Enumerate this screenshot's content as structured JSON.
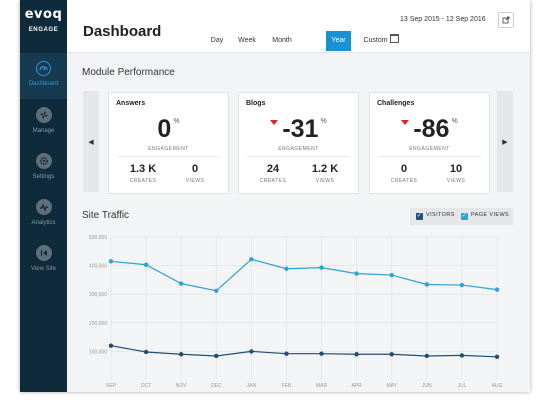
{
  "app": {
    "logo": "evoq",
    "logo_sub": "ENGAGE"
  },
  "sidebar": {
    "items": [
      {
        "label": "Dashboard",
        "icon": "dashboard-icon",
        "active": true
      },
      {
        "label": "Manage",
        "icon": "manage-icon",
        "active": false
      },
      {
        "label": "Settings",
        "icon": "settings-icon",
        "active": false
      },
      {
        "label": "Analytics",
        "icon": "analytics-icon",
        "active": false
      },
      {
        "label": "View Site",
        "icon": "view-site-icon",
        "active": false
      }
    ]
  },
  "header": {
    "title": "Dashboard",
    "date_range": "13 Sep 2015 - 12 Sep 2016",
    "ranges": [
      "Day",
      "Week",
      "Month",
      "Year",
      "Custom"
    ],
    "active_range": "Year"
  },
  "module_performance": {
    "title": "Module Performance",
    "cards": [
      {
        "title": "Answers",
        "value": "0",
        "trend": "none",
        "unit": "%",
        "label": "ENGAGEMENT",
        "stats": [
          {
            "value": "1.3 K",
            "label": "CREATES"
          },
          {
            "value": "0",
            "label": "VIEWS"
          }
        ]
      },
      {
        "title": "Blogs",
        "value": "-31",
        "trend": "down",
        "unit": "%",
        "label": "ENGAGEMENT",
        "stats": [
          {
            "value": "24",
            "label": "CREATES"
          },
          {
            "value": "1.2 K",
            "label": "VIEWS"
          }
        ]
      },
      {
        "title": "Challenges",
        "value": "-86",
        "trend": "down",
        "unit": "%",
        "label": "ENGAGEMENT",
        "stats": [
          {
            "value": "0",
            "label": "CREATES"
          },
          {
            "value": "10",
            "label": "VIEWS"
          }
        ]
      }
    ]
  },
  "site_traffic": {
    "title": "Site Traffic",
    "legend": [
      {
        "label": "VISITORS",
        "checked": true,
        "color": "#1e4e79"
      },
      {
        "label": "PAGE VIEWS",
        "checked": true,
        "color": "#2ea3d5"
      }
    ]
  },
  "colors": {
    "accent": "#1a92d2",
    "sidebar": "#0f2a3a",
    "trend_down": "#e02424"
  },
  "chart_data": {
    "type": "line",
    "categories": [
      "SEP",
      "OCT",
      "NOV",
      "DEC",
      "JAN",
      "FEB",
      "MAR",
      "APR",
      "MAY",
      "JUN",
      "JUL",
      "AUG"
    ],
    "yticks": [
      "500,000",
      "400,000",
      "300,000",
      "200,000",
      "100,000"
    ],
    "ylim": [
      0,
      500000
    ],
    "grid": true,
    "series": [
      {
        "name": "PAGE VIEWS",
        "color": "#2ea3d5",
        "values": [
          415000,
          403000,
          337000,
          312000,
          422000,
          389000,
          393000,
          372000,
          367000,
          334000,
          332000,
          316000
        ]
      },
      {
        "name": "VISITORS",
        "color": "#1e4e79",
        "values": [
          120000,
          98000,
          90000,
          84000,
          100000,
          92000,
          92000,
          90000,
          90000,
          84000,
          86000,
          81000
        ]
      }
    ]
  }
}
